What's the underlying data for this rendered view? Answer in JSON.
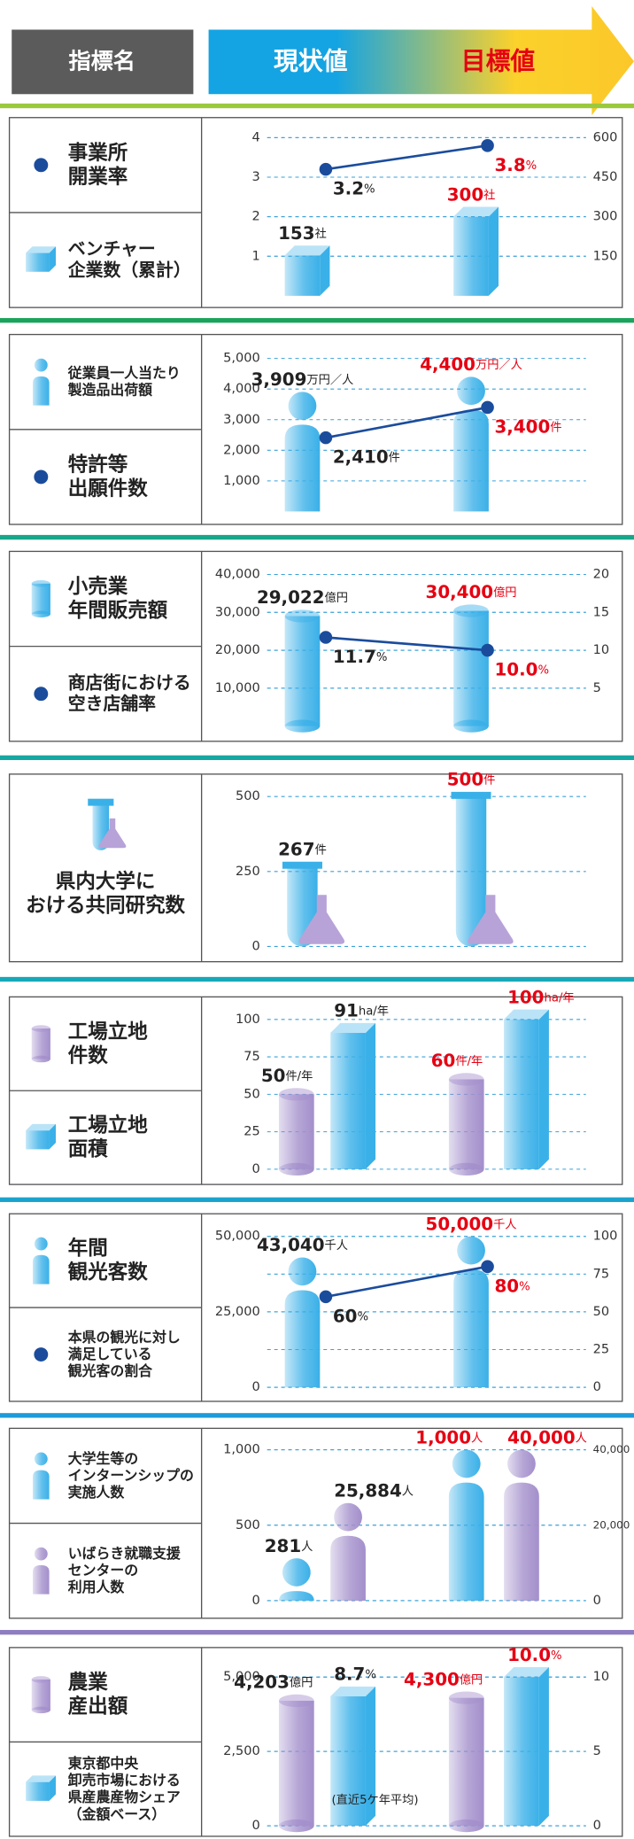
{
  "header": {
    "index": "指標名",
    "current": "現状値",
    "target": "目標値"
  },
  "chart_data": [
    {
      "type": "combo",
      "grid": true,
      "series": [
        {
          "name": "事業所\n開業率",
          "kind": "line",
          "color": "#1b4c9c",
          "values": [
            3.2,
            3.8
          ],
          "value_labels": [
            "3.2%",
            "3.8%"
          ]
        },
        {
          "name": "ベンチャー\n企業数（累計）",
          "kind": "box3d",
          "color": "#3ab0e8",
          "axis": "y2",
          "values": [
            153,
            300
          ],
          "value_labels": [
            "153社",
            "300社"
          ]
        }
      ],
      "ylim": [
        0,
        4.3
      ],
      "yticks": [
        1,
        2,
        3,
        4
      ],
      "y2lim": [
        0,
        645
      ],
      "y2ticks": [
        150,
        300,
        450,
        600
      ]
    },
    {
      "type": "combo",
      "grid": true,
      "series": [
        {
          "name": "従業員一人当たり\n製造品出荷額",
          "kind": "person",
          "color": "#3ab0e8",
          "values": [
            3909,
            4400
          ],
          "value_labels": [
            "3,909万円／人",
            "4,400万円／人"
          ]
        },
        {
          "name": "特許等\n出願件数",
          "kind": "line",
          "color": "#1b4c9c",
          "values": [
            2410,
            3400
          ],
          "value_labels": [
            "2,410件",
            "3,400件"
          ]
        }
      ],
      "ylim": [
        0,
        5400
      ],
      "yticks": [
        {
          "value": 1000,
          "label": "1,000"
        },
        {
          "value": 2000,
          "label": "2,000"
        },
        {
          "value": 3000,
          "label": "3,000"
        },
        {
          "value": 4000,
          "label": "4,000"
        },
        {
          "value": 5000,
          "label": "5,000"
        }
      ]
    },
    {
      "type": "combo",
      "grid": true,
      "series": [
        {
          "name": "小売業\n年間販売額",
          "kind": "cylinder",
          "color": "#3ab0e8",
          "values": [
            29022,
            30400
          ],
          "value_labels": [
            "29,022億円",
            "30,400億円"
          ]
        },
        {
          "name": "商店街における\n空き店舗率",
          "kind": "line",
          "color": "#1b4c9c",
          "axis": "y2",
          "values": [
            11.7,
            10.0
          ],
          "value_labels": [
            "11.7%",
            "10.0%"
          ]
        }
      ],
      "ylim": [
        0,
        43000
      ],
      "yticks": [
        {
          "value": 10000,
          "label": "10,000"
        },
        {
          "value": 20000,
          "label": "20,000"
        },
        {
          "value": 30000,
          "label": "30,000"
        },
        {
          "value": 40000,
          "label": "40,000"
        }
      ],
      "y2lim": [
        0,
        21.5
      ],
      "y2ticks": [
        5,
        10,
        15,
        20
      ]
    },
    {
      "type": "combo",
      "grid": true,
      "series": [
        {
          "name": "県内大学に\nおける共同研究数",
          "kind": "tube",
          "color": "#3ab0e8",
          "values": [
            267,
            500
          ],
          "value_labels": [
            "267件",
            "500件"
          ]
        }
      ],
      "ylim": [
        0,
        520
      ],
      "yticks": [
        0,
        250,
        500
      ]
    },
    {
      "type": "combo",
      "grid": true,
      "series": [
        {
          "name": "工場立地\n件数",
          "kind": "cylinder",
          "color": "#a38fcb",
          "values": [
            50,
            60
          ],
          "value_labels": [
            "50件/年",
            "60件/年"
          ]
        },
        {
          "name": "工場立地\n面積",
          "kind": "box3d",
          "color": "#3ab0e8",
          "values": [
            91,
            100
          ],
          "value_labels": [
            "91ha/年",
            "100ha/年"
          ]
        }
      ],
      "ylim": [
        0,
        108
      ],
      "yticks": [
        0,
        25,
        50,
        75,
        100
      ]
    },
    {
      "type": "combo",
      "grid": true,
      "series": [
        {
          "name": "年間\n観光客数",
          "kind": "person",
          "color": "#3ab0e8",
          "values": [
            43040,
            50000
          ],
          "value_labels": [
            "43,040千人",
            "50,000千人"
          ]
        },
        {
          "name": "本県の観光に対し\n満足している\n観光客の割合",
          "kind": "line",
          "color": "#1b4c9c",
          "axis": "y2",
          "values": [
            60,
            80
          ],
          "value_labels": [
            "60%",
            "80%"
          ]
        }
      ],
      "ylim": [
        0,
        54000
      ],
      "yticks": [
        0,
        {
          "value": 25000,
          "label": "25,000"
        },
        {
          "value": 50000,
          "label": "50,000"
        }
      ],
      "y2lim": [
        0,
        108
      ],
      "y2ticks": [
        0,
        25,
        50,
        75,
        100
      ]
    },
    {
      "type": "combo",
      "grid": true,
      "series": [
        {
          "name": "大学生等の\nインターンシップの\n実施人数",
          "kind": "person",
          "color": "#3ab0e8",
          "values": [
            281,
            1000
          ],
          "value_labels": [
            "281人",
            "1,000人"
          ]
        },
        {
          "name": "いばらき就職支援\nセンターの\n利用人数",
          "kind": "person",
          "color": "#a38fcb",
          "axis": "y2",
          "values": [
            25884,
            40000
          ],
          "value_labels": [
            "25,884人",
            "40,000人"
          ]
        }
      ],
      "ylim": [
        0,
        1080
      ],
      "yticks": [
        0,
        500,
        {
          "value": 1000,
          "label": "1,000"
        }
      ],
      "y2lim": [
        0,
        43200
      ],
      "y2ticks": [
        0,
        {
          "value": 20000,
          "label": "20,000"
        },
        {
          "value": 40000,
          "label": "40,000"
        }
      ]
    },
    {
      "type": "combo",
      "grid": true,
      "annotation": "(直近5ケ年平均)",
      "series": [
        {
          "name": "農業\n産出額",
          "kind": "cylinder",
          "color": "#a38fcb",
          "values": [
            4203,
            4300
          ],
          "value_labels": [
            "4,203億円",
            "4,300億円"
          ]
        },
        {
          "name": "東京都中央\n卸売市場における\n県産農産物シェア\n（金額ベース）",
          "kind": "box3d",
          "color": "#3ab0e8",
          "axis": "y2",
          "values": [
            8.7,
            10.0
          ],
          "value_labels": [
            "8.7%",
            "10.0%"
          ]
        }
      ],
      "ylim": [
        0,
        5400
      ],
      "yticks": [
        0,
        {
          "value": 2500,
          "label": "2,500"
        },
        {
          "value": 5000,
          "label": "5,000"
        }
      ],
      "y2lim": [
        0,
        10.8
      ],
      "y2ticks": [
        0,
        5,
        10
      ]
    }
  ]
}
